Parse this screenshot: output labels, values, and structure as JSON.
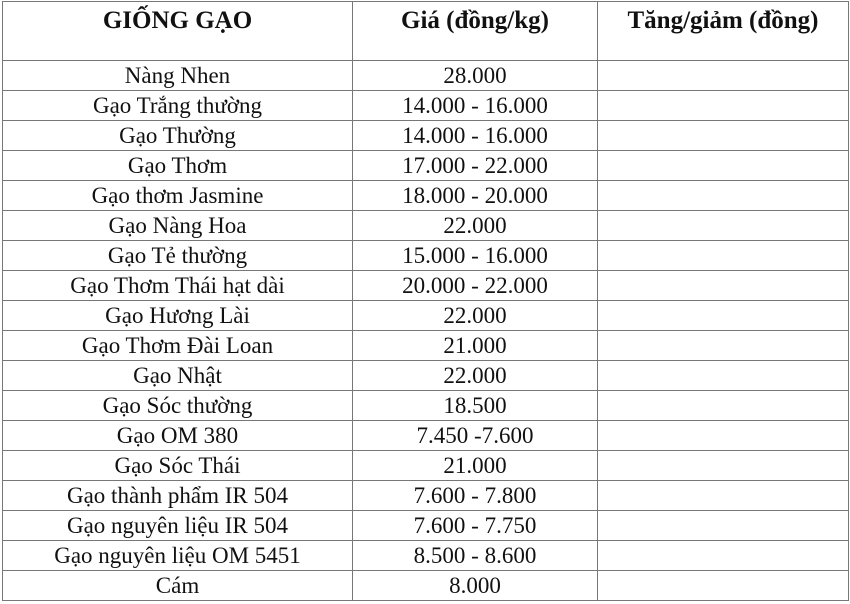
{
  "table": {
    "headers": [
      "GIỐNG GẠO",
      "Giá (đồng/kg)",
      "Tăng/giảm (đồng)"
    ],
    "rows": [
      {
        "variety": "Nàng Nhen",
        "price": "28.000",
        "change": ""
      },
      {
        "variety": "Gạo Trắng thường",
        "price": "14.000 - 16.000",
        "change": ""
      },
      {
        "variety": "Gạo Thường",
        "price": "14.000 - 16.000",
        "change": ""
      },
      {
        "variety": "Gạo Thơm",
        "price": "17.000 - 22.000",
        "change": ""
      },
      {
        "variety": "Gạo thơm Jasmine",
        "price": "18.000 - 20.000",
        "change": ""
      },
      {
        "variety": "Gạo Nàng Hoa",
        "price": "22.000",
        "change": ""
      },
      {
        "variety": "Gạo Tẻ thường",
        "price": "15.000 - 16.000",
        "change": ""
      },
      {
        "variety": "Gạo Thơm Thái hạt dài",
        "price": "20.000 - 22.000",
        "change": ""
      },
      {
        "variety": "Gạo Hương Lài",
        "price": "22.000",
        "change": ""
      },
      {
        "variety": "Gạo Thơm Đài Loan",
        "price": "21.000",
        "change": ""
      },
      {
        "variety": "Gạo Nhật",
        "price": "22.000",
        "change": ""
      },
      {
        "variety": "Gạo Sóc thường",
        "price": "18.500",
        "change": ""
      },
      {
        "variety": "Gạo OM 380",
        "price": "7.450 -7.600",
        "change": ""
      },
      {
        "variety": "Gạo Sóc Thái",
        "price": "21.000",
        "change": ""
      },
      {
        "variety": "Gạo thành phẩm IR 504",
        "price": "7.600 - 7.800",
        "change": ""
      },
      {
        "variety": "Gạo nguyên liệu IR 504",
        "price": "7.600 - 7.750",
        "change": ""
      },
      {
        "variety": "Gạo nguyên liệu OM 5451",
        "price": "8.500 - 8.600",
        "change": ""
      },
      {
        "variety": "Cám",
        "price": "8.000",
        "change": ""
      }
    ]
  }
}
